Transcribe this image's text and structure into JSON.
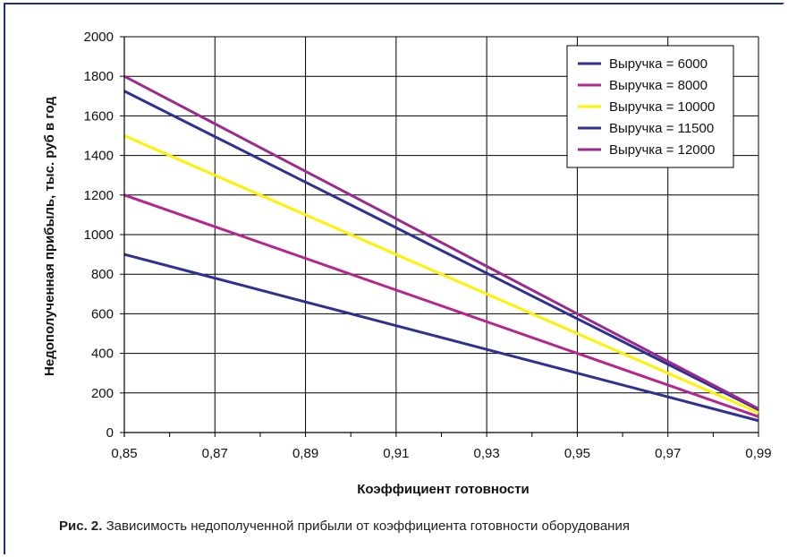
{
  "caption": {
    "prefix": "Рис. 2.",
    "text": " Зависимость недополученной прибыли от коэффициента готовности оборудования"
  },
  "chart_data": {
    "type": "line",
    "xlabel": "Коэффициент готовности",
    "ylabel": "Недополученная прибыль, тыс. руб в год",
    "x": [
      0.85,
      0.87,
      0.89,
      0.91,
      0.93,
      0.95,
      0.97,
      0.99
    ],
    "x_tick_labels": [
      "0,85",
      "0,87",
      "0,89",
      "0,91",
      "0,93",
      "0,95",
      "0,97",
      "0,99"
    ],
    "y_ticks": [
      0,
      200,
      400,
      600,
      800,
      1000,
      1200,
      1400,
      1600,
      1800,
      2000
    ],
    "xlim": [
      0.85,
      0.99
    ],
    "ylim": [
      0,
      2000
    ],
    "grid": true,
    "legend_position": "top-right",
    "series": [
      {
        "name": "Выручка = 6000",
        "color": "#2e3192",
        "values": [
          900,
          780,
          660,
          540,
          420,
          300,
          180,
          60
        ]
      },
      {
        "name": "Выручка = 8000",
        "color": "#b5258f",
        "values": [
          1200,
          1040,
          880,
          720,
          560,
          400,
          240,
          80
        ]
      },
      {
        "name": "Выручка = 10000",
        "color": "#fff200",
        "values": [
          1500,
          1300,
          1100,
          900,
          700,
          500,
          300,
          100
        ]
      },
      {
        "name": "Выручка = 11500",
        "color": "#2e3192",
        "values": [
          1725,
          1495,
          1265,
          1035,
          805,
          575,
          345,
          115
        ]
      },
      {
        "name": "Выручка = 12000",
        "color": "#9b2a8e",
        "values": [
          1800,
          1560,
          1320,
          1080,
          840,
          600,
          360,
          120
        ]
      }
    ]
  }
}
